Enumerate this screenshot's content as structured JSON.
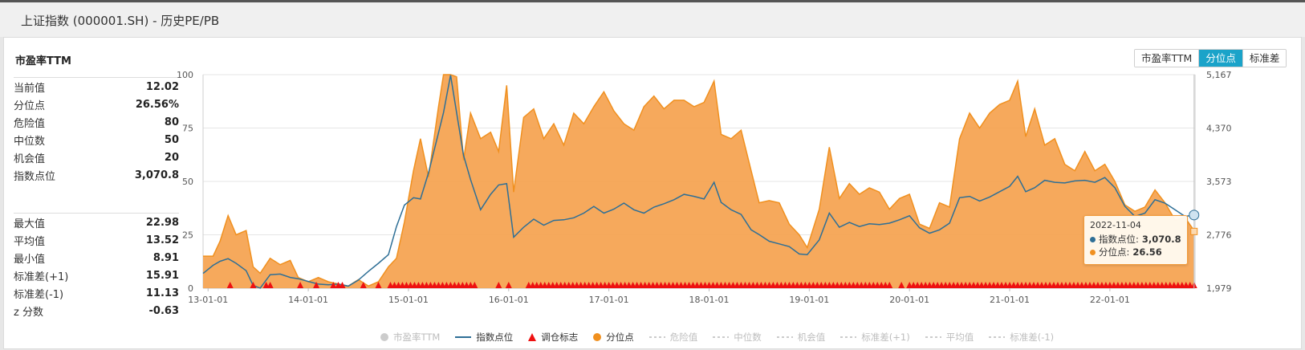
{
  "window": {
    "title": "上证指数 (000001.SH) - 历史PE/PB"
  },
  "stats_title": "市盈率TTM",
  "stats_primary": [
    {
      "label": "当前值",
      "value": "12.02"
    },
    {
      "label": "分位点",
      "value": "26.56%"
    },
    {
      "label": "危险值",
      "value": "80"
    },
    {
      "label": "中位数",
      "value": "50"
    },
    {
      "label": "机会值",
      "value": "20"
    },
    {
      "label": "指数点位",
      "value": "3,070.8"
    }
  ],
  "stats_secondary": [
    {
      "label": "最大值",
      "value": "22.98"
    },
    {
      "label": "平均值",
      "value": "13.52"
    },
    {
      "label": "最小值",
      "value": "8.91"
    },
    {
      "label": "标准差(+1)",
      "value": "15.91"
    },
    {
      "label": "标准差(-1)",
      "value": "11.13"
    },
    {
      "label": "z 分数",
      "value": "-0.63"
    }
  ],
  "tabs": [
    {
      "label": "市盈率TTM",
      "active": false
    },
    {
      "label": "分位点",
      "active": true
    },
    {
      "label": "标准差",
      "active": false
    }
  ],
  "colors": {
    "percentile_fill": "#f5a04a",
    "percentile_line": "#f0901f",
    "index_line": "#2e6f96",
    "signal": "#ee1111",
    "tab_active": "#1aa3c9"
  },
  "legend": [
    {
      "label": "市盈率TTM",
      "marker": "dot",
      "color": "#cccccc",
      "enabled": false
    },
    {
      "label": "指数点位",
      "marker": "line",
      "color": "#2e6f96",
      "enabled": true
    },
    {
      "label": "调仓标志",
      "marker": "triangle",
      "color": "#ee1111",
      "enabled": true
    },
    {
      "label": "分位点",
      "marker": "dot",
      "color": "#f0901f",
      "enabled": true
    },
    {
      "label": "危险值",
      "marker": "dash",
      "color": "#cccccc",
      "enabled": false
    },
    {
      "label": "中位数",
      "marker": "dash",
      "color": "#cccccc",
      "enabled": false
    },
    {
      "label": "机会值",
      "marker": "dash",
      "color": "#cccccc",
      "enabled": false
    },
    {
      "label": "标准差(+1)",
      "marker": "dash",
      "color": "#cccccc",
      "enabled": false
    },
    {
      "label": "平均值",
      "marker": "dash",
      "color": "#cccccc",
      "enabled": false
    },
    {
      "label": "标准差(-1)",
      "marker": "dash",
      "color": "#cccccc",
      "enabled": false
    }
  ],
  "tooltip": {
    "date": "2022-11-04",
    "index_label": "指数点位:",
    "index_value": "3,070.8",
    "pct_label": "分位点:",
    "pct_value": "26.56"
  },
  "chart_data": {
    "type": "area",
    "x_tick_labels": [
      "13-01-01",
      "14-01-01",
      "15-01-01",
      "16-01-01",
      "17-01-01",
      "18-01-01",
      "19-01-01",
      "20-01-01",
      "21-01-01",
      "22-01-01"
    ],
    "left_axis": {
      "ticks": [
        0,
        25,
        50,
        75,
        100
      ],
      "range": [
        0,
        100
      ]
    },
    "right_axis": {
      "ticks": [
        "1,979",
        "2,776",
        "3,573",
        "4,370",
        "5,167"
      ],
      "range": [
        1979,
        5167
      ]
    },
    "grid": true,
    "x_range": [
      2012.95,
      2022.85
    ],
    "series": [
      {
        "name": "分位点",
        "axis": "left",
        "points": [
          [
            2012.95,
            15
          ],
          [
            2013.05,
            15
          ],
          [
            2013.12,
            22
          ],
          [
            2013.2,
            34
          ],
          [
            2013.28,
            25
          ],
          [
            2013.38,
            27
          ],
          [
            2013.45,
            10
          ],
          [
            2013.52,
            7
          ],
          [
            2013.62,
            14
          ],
          [
            2013.72,
            11
          ],
          [
            2013.82,
            13
          ],
          [
            2013.9,
            5
          ],
          [
            2014.0,
            3
          ],
          [
            2014.1,
            5
          ],
          [
            2014.2,
            3
          ],
          [
            2014.3,
            2
          ],
          [
            2014.4,
            1
          ],
          [
            2014.5,
            4
          ],
          [
            2014.6,
            1
          ],
          [
            2014.7,
            3
          ],
          [
            2014.8,
            10
          ],
          [
            2014.88,
            14
          ],
          [
            2014.96,
            31
          ],
          [
            2015.05,
            55
          ],
          [
            2015.12,
            70
          ],
          [
            2015.2,
            52
          ],
          [
            2015.3,
            85
          ],
          [
            2015.35,
            100
          ],
          [
            2015.42,
            100
          ],
          [
            2015.48,
            99
          ],
          [
            2015.55,
            60
          ],
          [
            2015.62,
            82
          ],
          [
            2015.72,
            70
          ],
          [
            2015.82,
            73
          ],
          [
            2015.9,
            64
          ],
          [
            2015.98,
            95
          ],
          [
            2016.05,
            45
          ],
          [
            2016.15,
            80
          ],
          [
            2016.25,
            84
          ],
          [
            2016.35,
            70
          ],
          [
            2016.45,
            77
          ],
          [
            2016.55,
            67
          ],
          [
            2016.65,
            82
          ],
          [
            2016.75,
            77
          ],
          [
            2016.85,
            85
          ],
          [
            2016.95,
            92
          ],
          [
            2017.05,
            83
          ],
          [
            2017.15,
            77
          ],
          [
            2017.25,
            74
          ],
          [
            2017.35,
            85
          ],
          [
            2017.45,
            90
          ],
          [
            2017.55,
            84
          ],
          [
            2017.65,
            88
          ],
          [
            2017.75,
            88
          ],
          [
            2017.85,
            85
          ],
          [
            2017.95,
            87
          ],
          [
            2018.05,
            97
          ],
          [
            2018.12,
            72
          ],
          [
            2018.22,
            70
          ],
          [
            2018.32,
            74
          ],
          [
            2018.42,
            55
          ],
          [
            2018.5,
            40
          ],
          [
            2018.6,
            41
          ],
          [
            2018.7,
            40
          ],
          [
            2018.8,
            30
          ],
          [
            2018.9,
            25
          ],
          [
            2018.98,
            19
          ],
          [
            2019.1,
            37
          ],
          [
            2019.2,
            66
          ],
          [
            2019.3,
            42
          ],
          [
            2019.4,
            49
          ],
          [
            2019.5,
            44
          ],
          [
            2019.6,
            47
          ],
          [
            2019.7,
            45
          ],
          [
            2019.8,
            37
          ],
          [
            2019.9,
            42
          ],
          [
            2020.0,
            44
          ],
          [
            2020.1,
            30
          ],
          [
            2020.2,
            28
          ],
          [
            2020.3,
            40
          ],
          [
            2020.4,
            38
          ],
          [
            2020.5,
            70
          ],
          [
            2020.6,
            82
          ],
          [
            2020.7,
            75
          ],
          [
            2020.8,
            82
          ],
          [
            2020.9,
            86
          ],
          [
            2021.0,
            88
          ],
          [
            2021.08,
            97
          ],
          [
            2021.16,
            71
          ],
          [
            2021.25,
            84
          ],
          [
            2021.35,
            67
          ],
          [
            2021.45,
            70
          ],
          [
            2021.55,
            58
          ],
          [
            2021.65,
            55
          ],
          [
            2021.75,
            64
          ],
          [
            2021.85,
            55
          ],
          [
            2021.95,
            58
          ],
          [
            2022.05,
            50
          ],
          [
            2022.15,
            39
          ],
          [
            2022.25,
            36
          ],
          [
            2022.35,
            38
          ],
          [
            2022.45,
            46
          ],
          [
            2022.55,
            40
          ],
          [
            2022.65,
            32
          ],
          [
            2022.75,
            33
          ],
          [
            2022.84,
            27
          ]
        ]
      },
      {
        "name": "指数点位",
        "axis": "right",
        "points": [
          [
            2012.95,
            2200
          ],
          [
            2013.05,
            2320
          ],
          [
            2013.12,
            2380
          ],
          [
            2013.2,
            2420
          ],
          [
            2013.28,
            2350
          ],
          [
            2013.38,
            2240
          ],
          [
            2013.45,
            2020
          ],
          [
            2013.52,
            1980
          ],
          [
            2013.62,
            2180
          ],
          [
            2013.72,
            2190
          ],
          [
            2013.82,
            2140
          ],
          [
            2013.9,
            2120
          ],
          [
            2014.0,
            2080
          ],
          [
            2014.1,
            2040
          ],
          [
            2014.2,
            2030
          ],
          [
            2014.3,
            2040
          ],
          [
            2014.4,
            2010
          ],
          [
            2014.5,
            2100
          ],
          [
            2014.6,
            2230
          ],
          [
            2014.7,
            2350
          ],
          [
            2014.8,
            2480
          ],
          [
            2014.88,
            2900
          ],
          [
            2014.96,
            3220
          ],
          [
            2015.05,
            3330
          ],
          [
            2015.12,
            3310
          ],
          [
            2015.2,
            3700
          ],
          [
            2015.3,
            4300
          ],
          [
            2015.35,
            4600
          ],
          [
            2015.42,
            5160
          ],
          [
            2015.48,
            4600
          ],
          [
            2015.55,
            3960
          ],
          [
            2015.62,
            3600
          ],
          [
            2015.72,
            3150
          ],
          [
            2015.82,
            3380
          ],
          [
            2015.9,
            3520
          ],
          [
            2015.98,
            3539
          ],
          [
            2016.05,
            2740
          ],
          [
            2016.15,
            2890
          ],
          [
            2016.25,
            3010
          ],
          [
            2016.35,
            2920
          ],
          [
            2016.45,
            2990
          ],
          [
            2016.55,
            3000
          ],
          [
            2016.65,
            3030
          ],
          [
            2016.75,
            3100
          ],
          [
            2016.85,
            3200
          ],
          [
            2016.95,
            3100
          ],
          [
            2017.05,
            3160
          ],
          [
            2017.15,
            3250
          ],
          [
            2017.25,
            3150
          ],
          [
            2017.35,
            3100
          ],
          [
            2017.45,
            3190
          ],
          [
            2017.55,
            3240
          ],
          [
            2017.65,
            3300
          ],
          [
            2017.75,
            3380
          ],
          [
            2017.85,
            3350
          ],
          [
            2017.95,
            3310
          ],
          [
            2018.05,
            3560
          ],
          [
            2018.12,
            3260
          ],
          [
            2018.22,
            3150
          ],
          [
            2018.32,
            3080
          ],
          [
            2018.42,
            2850
          ],
          [
            2018.5,
            2780
          ],
          [
            2018.6,
            2680
          ],
          [
            2018.7,
            2640
          ],
          [
            2018.8,
            2600
          ],
          [
            2018.9,
            2490
          ],
          [
            2018.98,
            2480
          ],
          [
            2019.1,
            2700
          ],
          [
            2019.2,
            3100
          ],
          [
            2019.3,
            2890
          ],
          [
            2019.4,
            2960
          ],
          [
            2019.5,
            2900
          ],
          [
            2019.6,
            2940
          ],
          [
            2019.7,
            2930
          ],
          [
            2019.8,
            2950
          ],
          [
            2019.9,
            3000
          ],
          [
            2020.0,
            3060
          ],
          [
            2020.1,
            2880
          ],
          [
            2020.2,
            2800
          ],
          [
            2020.3,
            2850
          ],
          [
            2020.4,
            2950
          ],
          [
            2020.5,
            3330
          ],
          [
            2020.6,
            3350
          ],
          [
            2020.7,
            3280
          ],
          [
            2020.8,
            3340
          ],
          [
            2020.9,
            3420
          ],
          [
            2021.0,
            3500
          ],
          [
            2021.08,
            3650
          ],
          [
            2021.16,
            3420
          ],
          [
            2021.25,
            3480
          ],
          [
            2021.35,
            3590
          ],
          [
            2021.45,
            3560
          ],
          [
            2021.55,
            3550
          ],
          [
            2021.65,
            3580
          ],
          [
            2021.75,
            3590
          ],
          [
            2021.85,
            3560
          ],
          [
            2021.95,
            3630
          ],
          [
            2022.05,
            3480
          ],
          [
            2022.15,
            3200
          ],
          [
            2022.25,
            3050
          ],
          [
            2022.35,
            3100
          ],
          [
            2022.45,
            3300
          ],
          [
            2022.55,
            3250
          ],
          [
            2022.65,
            3150
          ],
          [
            2022.75,
            3050
          ],
          [
            2022.84,
            3070.8
          ]
        ]
      }
    ],
    "signal_markers": {
      "name": "调仓标志",
      "x": [
        2013.22,
        2013.45,
        2013.58,
        2013.62,
        2013.92,
        2014.08,
        2014.25,
        2014.3,
        2014.34,
        2014.55,
        2014.7,
        2014.82,
        2014.86,
        2014.9,
        2014.94,
        2014.98,
        2015.02,
        2015.06,
        2015.1,
        2015.14,
        2015.18,
        2015.22,
        2015.26,
        2015.3,
        2015.34,
        2015.38,
        2015.42,
        2015.46,
        2015.5,
        2015.54,
        2015.58,
        2015.62,
        2015.66,
        2015.9,
        2016.0,
        2016.2,
        2016.24,
        2016.28,
        2016.32,
        2016.36,
        2016.4,
        2016.44,
        2016.48,
        2016.52,
        2016.56,
        2016.6,
        2016.64,
        2016.68,
        2016.72,
        2016.76,
        2016.8,
        2016.84,
        2016.88,
        2016.92,
        2016.96,
        2017.0,
        2017.04,
        2017.08,
        2017.12,
        2017.16,
        2017.2,
        2017.24,
        2017.28,
        2017.32,
        2017.36,
        2017.4,
        2017.44,
        2017.48,
        2017.52,
        2017.56,
        2017.6,
        2017.64,
        2017.68,
        2017.72,
        2017.76,
        2017.8,
        2017.84,
        2017.88,
        2017.92,
        2017.96,
        2018.0,
        2018.04,
        2018.08,
        2018.12,
        2018.16,
        2018.2,
        2018.24,
        2018.28,
        2018.32,
        2018.36,
        2018.4,
        2018.44,
        2018.48,
        2018.52,
        2018.56,
        2018.6,
        2018.64,
        2018.68,
        2018.72,
        2018.76,
        2018.8,
        2018.84,
        2018.88,
        2018.92,
        2018.96,
        2019.0,
        2019.04,
        2019.08,
        2019.12,
        2019.16,
        2019.2,
        2019.24,
        2019.28,
        2019.32,
        2019.36,
        2019.4,
        2019.44,
        2019.48,
        2019.52,
        2019.56,
        2019.6,
        2019.64,
        2019.68,
        2019.72,
        2019.76,
        2019.8,
        2019.92,
        2020.0,
        2020.04,
        2020.08,
        2020.12,
        2020.16,
        2020.2,
        2020.24,
        2020.28,
        2020.32,
        2020.36,
        2020.4,
        2020.44,
        2020.48,
        2020.52,
        2020.56,
        2020.6,
        2020.64,
        2020.68,
        2020.72,
        2020.76,
        2020.8,
        2020.84,
        2020.88,
        2020.92,
        2020.96,
        2021.0,
        2021.04,
        2021.08,
        2021.12,
        2021.16,
        2021.2,
        2021.24,
        2021.28,
        2021.32,
        2021.36,
        2021.4,
        2021.44,
        2021.48,
        2021.52,
        2021.56,
        2021.6,
        2021.64,
        2021.68,
        2021.72,
        2021.76,
        2021.8,
        2021.84,
        2021.88,
        2021.92,
        2021.96,
        2022.0,
        2022.04,
        2022.08,
        2022.12,
        2022.16,
        2022.2,
        2022.24,
        2022.28,
        2022.32,
        2022.36,
        2022.4,
        2022.44,
        2022.48,
        2022.52,
        2022.56,
        2022.6,
        2022.64,
        2022.68,
        2022.72,
        2022.76,
        2022.8,
        2022.84
      ]
    },
    "tooltip_point": {
      "x": 2022.84,
      "index": 3070.8,
      "percentile": 26.56
    }
  }
}
